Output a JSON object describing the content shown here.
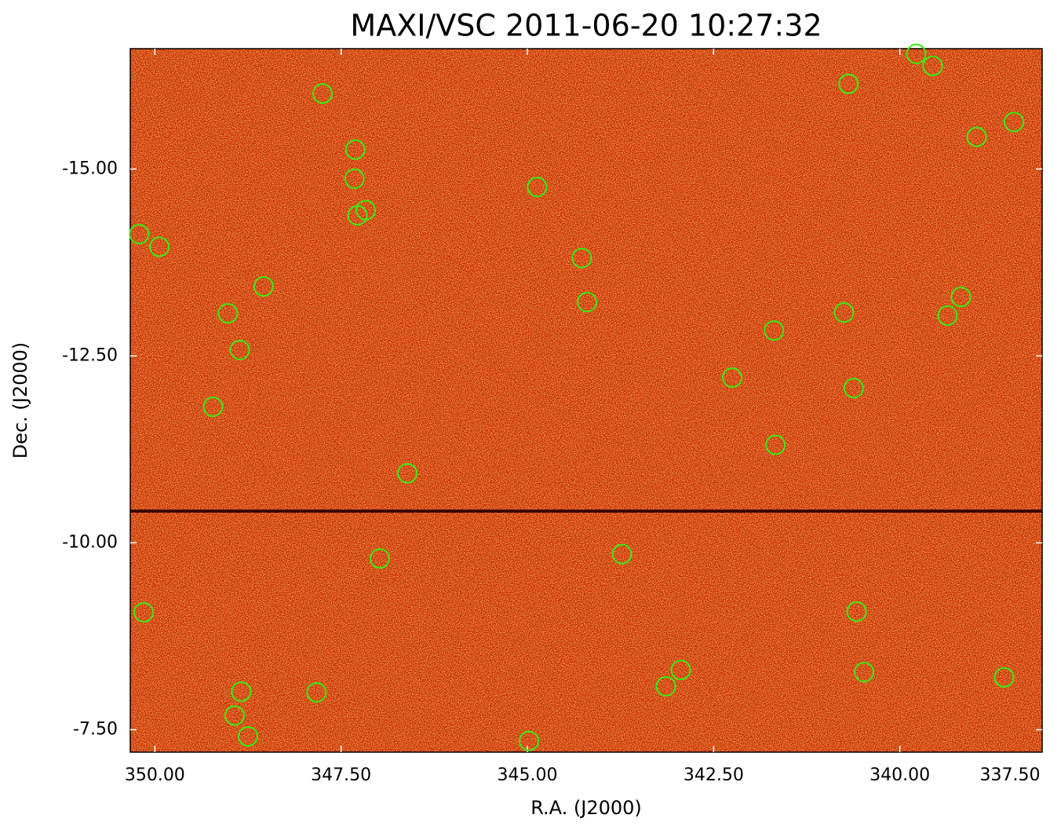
{
  "chart_data": {
    "type": "scatter",
    "title": "MAXI/VSC 2011-06-20 10:27:32",
    "x_label": "R.A. (J2000)",
    "y_label": "Dec. (J2000)",
    "x": [
      347.75,
      347.31,
      347.32,
      347.28,
      347.17,
      344.87,
      350.21,
      349.94,
      348.54,
      349.02,
      348.86,
      349.22,
      344.27,
      344.2,
      346.61,
      340.69,
      339.78,
      339.56,
      338.97,
      338.47,
      339.18,
      339.36,
      340.75,
      341.69,
      342.25,
      340.62,
      341.67,
      346.98,
      343.73,
      350.15,
      340.58,
      343.14,
      342.94,
      340.48,
      338.6,
      348.84,
      347.83,
      348.93,
      348.75,
      344.98
    ],
    "values": [
      -16.01,
      -15.26,
      -14.87,
      -14.38,
      -14.45,
      -14.76,
      -14.13,
      -13.96,
      -13.43,
      -13.07,
      -12.58,
      -11.82,
      -13.81,
      -13.22,
      -10.93,
      -16.14,
      -16.54,
      -16.38,
      -15.43,
      -15.63,
      -13.29,
      -13.04,
      -13.08,
      -12.84,
      -12.21,
      -12.07,
      -11.31,
      -9.79,
      -9.85,
      -9.07,
      -9.08,
      -8.08,
      -8.3,
      -8.27,
      -8.2,
      -8.01,
      -8.0,
      -7.69,
      -7.41,
      -7.35
    ],
    "color": "#33ee11",
    "xlim": [
      350.33,
      338.09
    ],
    "ylim": [
      -7.2,
      -16.61
    ],
    "xticks": [
      {
        "value": 350,
        "label": "350.00"
      },
      {
        "value": 347.5,
        "label": "347.50"
      },
      {
        "value": 345,
        "label": "345.00"
      },
      {
        "value": 342.5,
        "label": "342.50"
      },
      {
        "value": 340,
        "label": "340.00"
      },
      {
        "value": 337.5,
        "label": "337.50"
      }
    ],
    "yticks": [
      {
        "value": -15,
        "label": "-15.00"
      },
      {
        "value": -12.5,
        "label": "-12.50"
      },
      {
        "value": -10,
        "label": "-10.00"
      },
      {
        "value": -7.5,
        "label": "-7.50"
      }
    ]
  }
}
